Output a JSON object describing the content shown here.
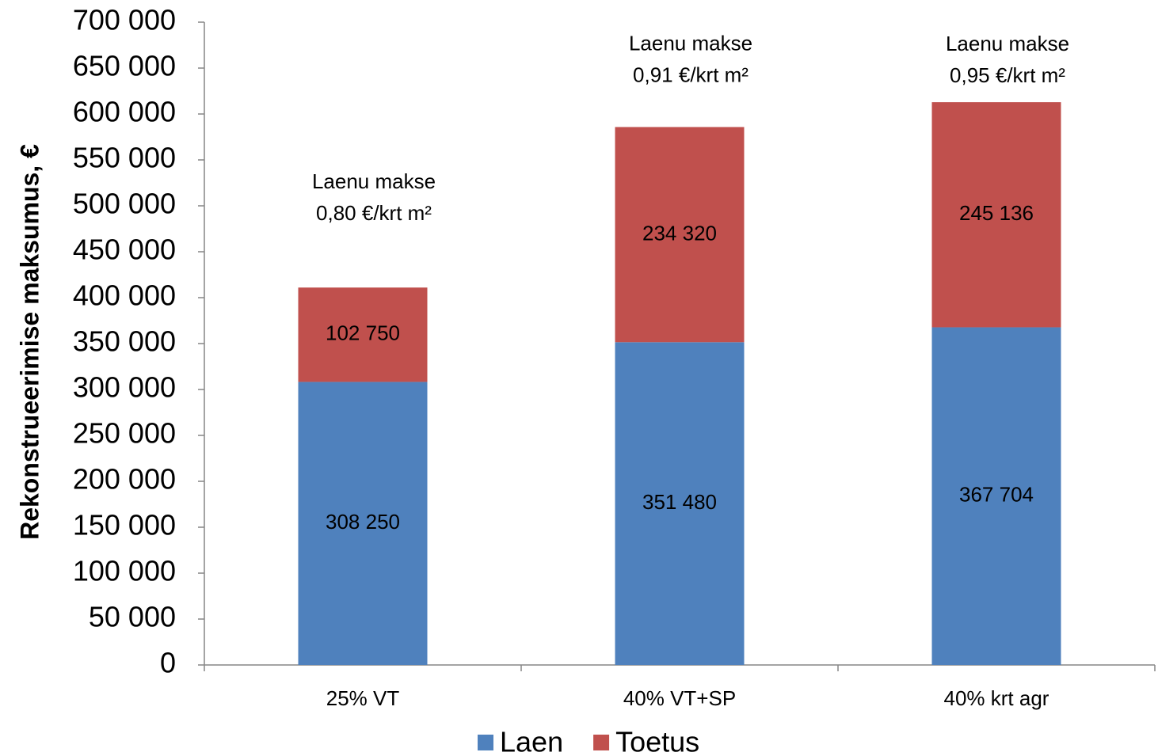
{
  "chart_data": {
    "type": "stacked-bar",
    "y_label": "Rekonstrueerimise maksumus, €",
    "categories": [
      "25% VT",
      "40% VT+SP",
      "40% krt agr"
    ],
    "series": [
      {
        "name": "Laen",
        "color": "#4f81bd",
        "values": [
          308250,
          351480,
          367704
        ],
        "value_labels": [
          "308 250",
          "351 480",
          "367 704"
        ]
      },
      {
        "name": "Toetus",
        "color": "#c0504d",
        "values": [
          102750,
          234320,
          245136
        ],
        "value_labels": [
          "102 750",
          "234 320",
          "245 136"
        ]
      }
    ],
    "annotations": [
      [
        "Laenu makse",
        "0,80 €/krt m²"
      ],
      [
        "Laenu makse",
        "0,91 €/krt m²"
      ],
      [
        "Laenu makse",
        "0,95 €/krt m²"
      ]
    ],
    "ylim": [
      0,
      700000
    ],
    "yticks": [
      0,
      {
        "value": 50000,
        "label": "50 000"
      },
      {
        "value": 100000,
        "label": "100 000"
      },
      {
        "value": 150000,
        "label": "150 000"
      },
      {
        "value": 200000,
        "label": "200 000"
      },
      {
        "value": 250000,
        "label": "250 000"
      },
      {
        "value": 300000,
        "label": "300 000"
      },
      {
        "value": 350000,
        "label": "350 000"
      },
      {
        "value": 400000,
        "label": "400 000"
      },
      {
        "value": 450000,
        "label": "450 000"
      },
      {
        "value": 500000,
        "label": "500 000"
      },
      {
        "value": 550000,
        "label": "550 000"
      },
      {
        "value": 600000,
        "label": "600 000"
      },
      {
        "value": 650000,
        "label": "650 000"
      },
      {
        "value": 700000,
        "label": "700 000"
      }
    ],
    "grid": false,
    "legend": "bottom"
  }
}
